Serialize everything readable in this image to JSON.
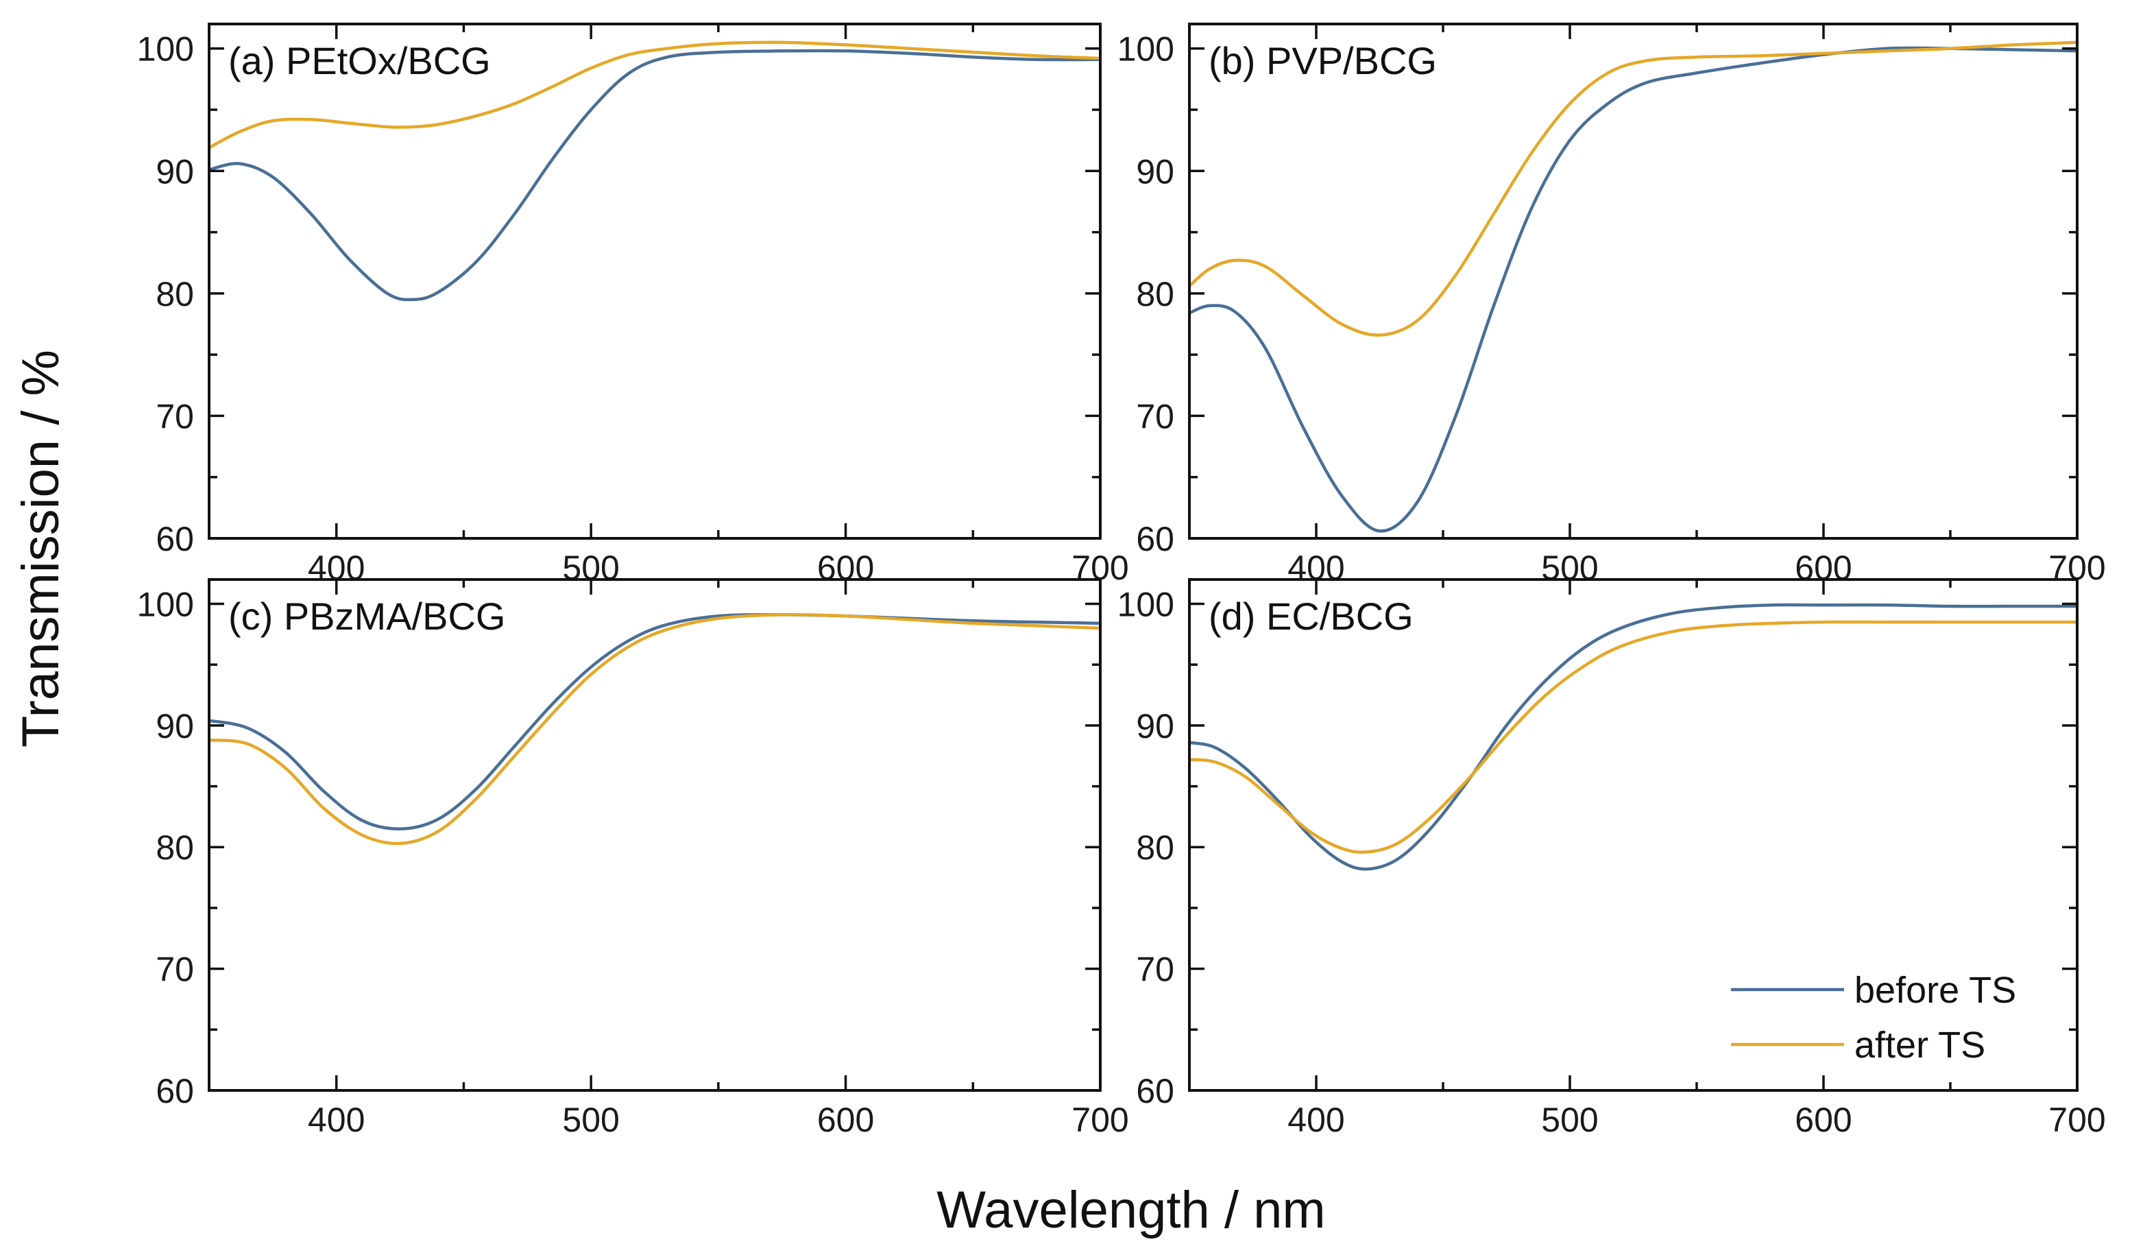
{
  "chart_data": [
    {
      "type": "line",
      "title": "(a) PEtOx/BCG",
      "xlabel": "Wavelength / nm",
      "ylabel": "Transmission / %",
      "xlim": [
        350,
        700
      ],
      "ylim": [
        60,
        102
      ],
      "xticks": [
        "400",
        "500",
        "600",
        "700"
      ],
      "yticks": [
        "60",
        "70",
        "80",
        "90",
        "100"
      ],
      "x": [
        350,
        362,
        375,
        390,
        405,
        420,
        430,
        440,
        455,
        470,
        485,
        500,
        515,
        530,
        550,
        575,
        600,
        625,
        650,
        675,
        700
      ],
      "series": [
        {
          "name": "before TS",
          "color": "#4a6f96",
          "values": [
            90.1,
            90.6,
            89.5,
            86.5,
            82.8,
            80.0,
            79.5,
            80.1,
            82.6,
            86.5,
            91.0,
            95.0,
            98.0,
            99.3,
            99.7,
            99.8,
            99.8,
            99.6,
            99.3,
            99.1,
            99.1
          ]
        },
        {
          "name": "after TS",
          "color": "#e5a828",
          "values": [
            91.9,
            93.2,
            94.1,
            94.2,
            93.9,
            93.6,
            93.6,
            93.8,
            94.5,
            95.5,
            96.9,
            98.4,
            99.5,
            100.0,
            100.4,
            100.5,
            100.3,
            100.0,
            99.7,
            99.4,
            99.2
          ]
        }
      ]
    },
    {
      "type": "line",
      "title": "(b) PVP/BCG",
      "xlabel": "Wavelength / nm",
      "ylabel": "Transmission / %",
      "xlim": [
        350,
        700
      ],
      "ylim": [
        60,
        102
      ],
      "xticks": [
        "400",
        "500",
        "600",
        "700"
      ],
      "yticks": [
        "60",
        "70",
        "80",
        "90",
        "100"
      ],
      "x": [
        350,
        358,
        368,
        380,
        395,
        410,
        425,
        440,
        455,
        470,
        485,
        500,
        515,
        530,
        550,
        575,
        600,
        625,
        650,
        675,
        700
      ],
      "series": [
        {
          "name": "before TS",
          "color": "#4a6f96",
          "values": [
            78.4,
            79.0,
            78.5,
            75.5,
            69.0,
            63.5,
            60.6,
            63.0,
            70.0,
            79.0,
            87.0,
            92.5,
            95.5,
            97.2,
            98.0,
            98.8,
            99.5,
            100.0,
            100.0,
            99.9,
            99.8
          ]
        },
        {
          "name": "after TS",
          "color": "#e5a828",
          "values": [
            80.6,
            82.0,
            82.7,
            82.2,
            79.8,
            77.5,
            76.6,
            77.8,
            81.5,
            86.5,
            91.5,
            95.5,
            98.0,
            99.0,
            99.3,
            99.4,
            99.6,
            99.8,
            100.0,
            100.3,
            100.5
          ]
        }
      ]
    },
    {
      "type": "line",
      "title": "(c) PBzMA/BCG",
      "xlabel": "Wavelength / nm",
      "ylabel": "Transmission / %",
      "xlim": [
        350,
        700
      ],
      "ylim": [
        60,
        102
      ],
      "xticks": [
        "400",
        "500",
        "600",
        "700"
      ],
      "yticks": [
        "60",
        "70",
        "80",
        "90",
        "100"
      ],
      "x": [
        350,
        365,
        380,
        395,
        410,
        425,
        440,
        455,
        470,
        485,
        500,
        515,
        530,
        550,
        575,
        600,
        625,
        650,
        675,
        700
      ],
      "series": [
        {
          "name": "before TS",
          "color": "#4a6f96",
          "values": [
            90.4,
            89.8,
            87.8,
            84.6,
            82.2,
            81.5,
            82.3,
            84.8,
            88.3,
            91.8,
            94.8,
            97.0,
            98.3,
            99.0,
            99.1,
            99.0,
            98.8,
            98.6,
            98.5,
            98.4
          ]
        },
        {
          "name": "after TS",
          "color": "#e5a828",
          "values": [
            88.8,
            88.5,
            86.5,
            83.2,
            81.0,
            80.3,
            81.3,
            84.0,
            87.5,
            91.0,
            94.2,
            96.5,
            97.9,
            98.8,
            99.1,
            99.0,
            98.7,
            98.4,
            98.2,
            98.0
          ]
        }
      ]
    },
    {
      "type": "line",
      "title": "(d) EC/BCG",
      "xlabel": "Wavelength / nm",
      "ylabel": "Transmission / %",
      "xlim": [
        350,
        700
      ],
      "ylim": [
        60,
        102
      ],
      "xticks": [
        "400",
        "500",
        "600",
        "700"
      ],
      "yticks": [
        "60",
        "70",
        "80",
        "90",
        "100"
      ],
      "x": [
        350,
        360,
        372,
        385,
        398,
        410,
        420,
        432,
        445,
        460,
        475,
        490,
        505,
        520,
        540,
        560,
        580,
        600,
        625,
        650,
        675,
        700
      ],
      "series": [
        {
          "name": "before TS",
          "color": "#4a6f96",
          "values": [
            88.6,
            88.2,
            86.5,
            83.8,
            80.8,
            78.8,
            78.2,
            79.0,
            81.5,
            85.5,
            90.0,
            93.6,
            96.3,
            98.0,
            99.2,
            99.7,
            99.9,
            99.9,
            99.9,
            99.8,
            99.8,
            99.8
          ]
        },
        {
          "name": "after TS",
          "color": "#e5a828",
          "values": [
            87.2,
            87.0,
            85.8,
            83.5,
            81.2,
            79.9,
            79.6,
            80.3,
            82.4,
            85.6,
            89.2,
            92.4,
            94.8,
            96.5,
            97.7,
            98.2,
            98.4,
            98.5,
            98.5,
            98.5,
            98.5,
            98.5
          ]
        }
      ]
    }
  ],
  "figure": {
    "xlabel": "Wavelength / nm",
    "ylabel": "Transmission / %",
    "legend": {
      "position": "bottom-right",
      "panel": 3,
      "entries": [
        {
          "label": "before TS",
          "color": "#4a6f96"
        },
        {
          "label": "after TS",
          "color": "#e5a828"
        }
      ]
    }
  }
}
